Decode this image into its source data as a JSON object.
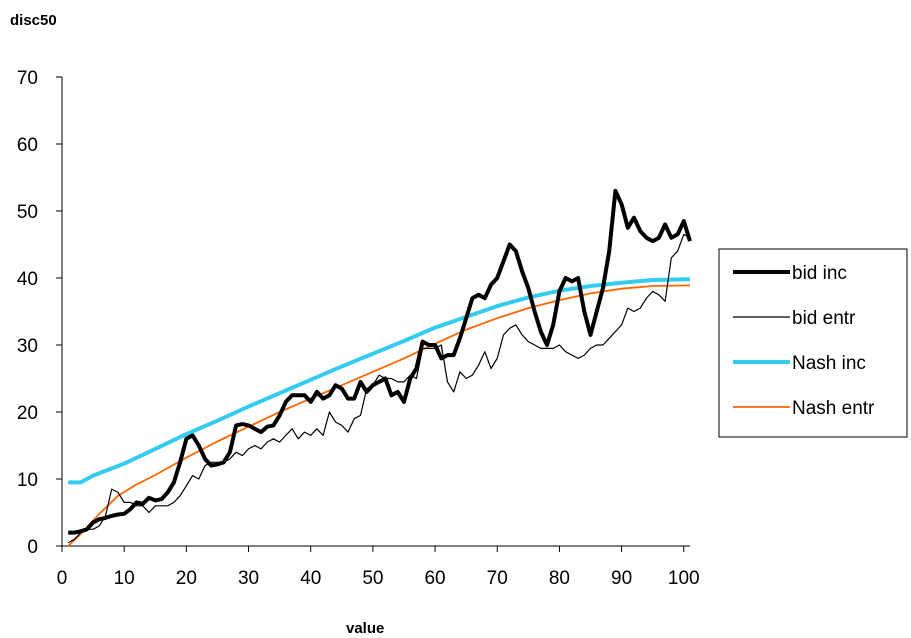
{
  "chart_data": {
    "type": "line",
    "title": "",
    "ylabel": "disc50",
    "xlabel": "value",
    "xlim": [
      0,
      101
    ],
    "ylim": [
      0,
      70
    ],
    "xticks": [
      0,
      10,
      20,
      30,
      40,
      50,
      60,
      70,
      80,
      90,
      100
    ],
    "yticks": [
      0,
      10,
      20,
      30,
      40,
      50,
      60,
      70
    ],
    "grid": false,
    "legend": "right",
    "series": [
      {
        "name": "bid inc",
        "color": "#000000",
        "points": [
          [
            1,
            2
          ],
          [
            2,
            2
          ],
          [
            3,
            2.2
          ],
          [
            4,
            2.5
          ],
          [
            5,
            3.5
          ],
          [
            6,
            4
          ],
          [
            7,
            4.2
          ],
          [
            8,
            4.5
          ],
          [
            9,
            4.7
          ],
          [
            10,
            4.8
          ],
          [
            11,
            5.5
          ],
          [
            12,
            6.5
          ],
          [
            13,
            6.3
          ],
          [
            14,
            7.2
          ],
          [
            15,
            6.8
          ],
          [
            16,
            7
          ],
          [
            17,
            8
          ],
          [
            18,
            9.5
          ],
          [
            19,
            12.5
          ],
          [
            20,
            16
          ],
          [
            21,
            16.5
          ],
          [
            22,
            15
          ],
          [
            23,
            13
          ],
          [
            24,
            12
          ],
          [
            25,
            12.2
          ],
          [
            26,
            12.5
          ],
          [
            27,
            14
          ],
          [
            28,
            18
          ],
          [
            29,
            18.2
          ],
          [
            30,
            18
          ],
          [
            31,
            17.5
          ],
          [
            32,
            17
          ],
          [
            33,
            17.8
          ],
          [
            34,
            18
          ],
          [
            35,
            19.5
          ],
          [
            36,
            21.5
          ],
          [
            37,
            22.5
          ],
          [
            38,
            22.5
          ],
          [
            39,
            22.5
          ],
          [
            40,
            21.5
          ],
          [
            41,
            23
          ],
          [
            42,
            22
          ],
          [
            43,
            22.5
          ],
          [
            44,
            24
          ],
          [
            45,
            23.5
          ],
          [
            46,
            22
          ],
          [
            47,
            22
          ],
          [
            48,
            24.5
          ],
          [
            49,
            23
          ],
          [
            50,
            24
          ],
          [
            51,
            24.5
          ],
          [
            52,
            25
          ],
          [
            53,
            22.5
          ],
          [
            54,
            23
          ],
          [
            55,
            21.5
          ],
          [
            56,
            25
          ],
          [
            57,
            26.5
          ],
          [
            58,
            30.5
          ],
          [
            59,
            30
          ],
          [
            60,
            30
          ],
          [
            61,
            28
          ],
          [
            62,
            28.5
          ],
          [
            63,
            28.5
          ],
          [
            64,
            31
          ],
          [
            65,
            34
          ],
          [
            66,
            37
          ],
          [
            67,
            37.5
          ],
          [
            68,
            37
          ],
          [
            69,
            39
          ],
          [
            70,
            40
          ],
          [
            71,
            42.5
          ],
          [
            72,
            45
          ],
          [
            73,
            44
          ],
          [
            74,
            41
          ],
          [
            75,
            38.5
          ],
          [
            76,
            35
          ],
          [
            77,
            32
          ],
          [
            78,
            30
          ],
          [
            79,
            33
          ],
          [
            80,
            38
          ],
          [
            81,
            40
          ],
          [
            82,
            39.5
          ],
          [
            83,
            40
          ],
          [
            84,
            35
          ],
          [
            85,
            31.5
          ],
          [
            86,
            35
          ],
          [
            87,
            38.5
          ],
          [
            88,
            44
          ],
          [
            89,
            53
          ],
          [
            90,
            51
          ],
          [
            91,
            47.5
          ],
          [
            92,
            49
          ],
          [
            93,
            47
          ],
          [
            94,
            46
          ],
          [
            95,
            45.5
          ],
          [
            96,
            46
          ],
          [
            97,
            48
          ],
          [
            98,
            46
          ],
          [
            99,
            46.5
          ],
          [
            100,
            48.5
          ],
          [
            101,
            45.5
          ]
        ]
      },
      {
        "name": "bid entr",
        "color": "#000000",
        "points": [
          [
            1,
            0.5
          ],
          [
            2,
            1
          ],
          [
            3,
            2
          ],
          [
            4,
            2.5
          ],
          [
            5,
            2.5
          ],
          [
            6,
            3
          ],
          [
            7,
            4.5
          ],
          [
            8,
            8.5
          ],
          [
            9,
            8
          ],
          [
            10,
            6.5
          ],
          [
            11,
            6.5
          ],
          [
            12,
            6
          ],
          [
            13,
            6
          ],
          [
            14,
            5
          ],
          [
            15,
            6
          ],
          [
            16,
            6
          ],
          [
            17,
            6
          ],
          [
            18,
            6.5
          ],
          [
            19,
            7.5
          ],
          [
            20,
            9
          ],
          [
            21,
            10.5
          ],
          [
            22,
            10
          ],
          [
            23,
            12
          ],
          [
            24,
            12.5
          ],
          [
            25,
            12.5
          ],
          [
            26,
            12.5
          ],
          [
            27,
            13
          ],
          [
            28,
            14
          ],
          [
            29,
            13.5
          ],
          [
            30,
            14.5
          ],
          [
            31,
            15
          ],
          [
            32,
            14.5
          ],
          [
            33,
            15.5
          ],
          [
            34,
            16
          ],
          [
            35,
            15.5
          ],
          [
            36,
            16.5
          ],
          [
            37,
            17.5
          ],
          [
            38,
            16
          ],
          [
            39,
            17
          ],
          [
            40,
            16.5
          ],
          [
            41,
            17.5
          ],
          [
            42,
            16.5
          ],
          [
            43,
            20
          ],
          [
            44,
            18.5
          ],
          [
            45,
            18
          ],
          [
            46,
            17
          ],
          [
            47,
            19
          ],
          [
            48,
            19.5
          ],
          [
            49,
            23.5
          ],
          [
            50,
            24
          ],
          [
            51,
            25.5
          ],
          [
            52,
            25
          ],
          [
            53,
            25
          ],
          [
            54,
            24.5
          ],
          [
            55,
            24.5
          ],
          [
            56,
            25.5
          ],
          [
            57,
            25
          ],
          [
            58,
            29.5
          ],
          [
            59,
            29.5
          ],
          [
            60,
            29.5
          ],
          [
            61,
            30
          ],
          [
            62,
            24.5
          ],
          [
            63,
            23
          ],
          [
            64,
            26
          ],
          [
            65,
            25
          ],
          [
            66,
            25.5
          ],
          [
            67,
            27
          ],
          [
            68,
            29
          ],
          [
            69,
            26.5
          ],
          [
            70,
            28
          ],
          [
            71,
            31.5
          ],
          [
            72,
            32.5
          ],
          [
            73,
            33
          ],
          [
            74,
            31.5
          ],
          [
            75,
            30.5
          ],
          [
            76,
            30
          ],
          [
            77,
            29.5
          ],
          [
            78,
            29.5
          ],
          [
            79,
            29.5
          ],
          [
            80,
            30
          ],
          [
            81,
            29
          ],
          [
            82,
            28.5
          ],
          [
            83,
            28
          ],
          [
            84,
            28.5
          ],
          [
            85,
            29.5
          ],
          [
            86,
            30
          ],
          [
            87,
            30
          ],
          [
            88,
            31
          ],
          [
            89,
            32
          ],
          [
            90,
            33
          ],
          [
            91,
            35.5
          ],
          [
            92,
            35
          ],
          [
            93,
            35.5
          ],
          [
            94,
            37
          ],
          [
            95,
            38
          ],
          [
            96,
            37.5
          ],
          [
            97,
            36.5
          ],
          [
            98,
            43
          ],
          [
            99,
            44
          ],
          [
            100,
            46.5
          ],
          [
            101,
            46
          ]
        ]
      },
      {
        "name": "Nash inc",
        "color": "#33ccee",
        "points": [
          [
            1,
            9.5
          ],
          [
            3,
            9.5
          ],
          [
            5,
            10.5
          ],
          [
            10,
            12.3
          ],
          [
            15,
            14.5
          ],
          [
            20,
            16.7
          ],
          [
            25,
            18.7
          ],
          [
            30,
            20.8
          ],
          [
            35,
            22.8
          ],
          [
            40,
            24.8
          ],
          [
            45,
            26.8
          ],
          [
            50,
            28.7
          ],
          [
            55,
            30.6
          ],
          [
            60,
            32.6
          ],
          [
            65,
            34.2
          ],
          [
            70,
            35.8
          ],
          [
            75,
            37.1
          ],
          [
            80,
            38.1
          ],
          [
            85,
            38.8
          ],
          [
            90,
            39.3
          ],
          [
            95,
            39.7
          ],
          [
            101,
            39.8
          ]
        ]
      },
      {
        "name": "Nash entr",
        "color": "#ff6600",
        "points": [
          [
            1,
            0
          ],
          [
            3,
            1.8
          ],
          [
            6,
            4.8
          ],
          [
            9,
            7.5
          ],
          [
            12,
            9.2
          ],
          [
            15,
            10.6
          ],
          [
            20,
            13.2
          ],
          [
            25,
            15.6
          ],
          [
            30,
            17.8
          ],
          [
            35,
            20
          ],
          [
            40,
            22
          ],
          [
            45,
            24
          ],
          [
            50,
            26
          ],
          [
            55,
            28
          ],
          [
            60,
            30.2
          ],
          [
            65,
            32.3
          ],
          [
            70,
            34
          ],
          [
            75,
            35.5
          ],
          [
            80,
            36.7
          ],
          [
            85,
            37.7
          ],
          [
            90,
            38.4
          ],
          [
            95,
            38.8
          ],
          [
            101,
            38.9
          ]
        ]
      }
    ]
  }
}
